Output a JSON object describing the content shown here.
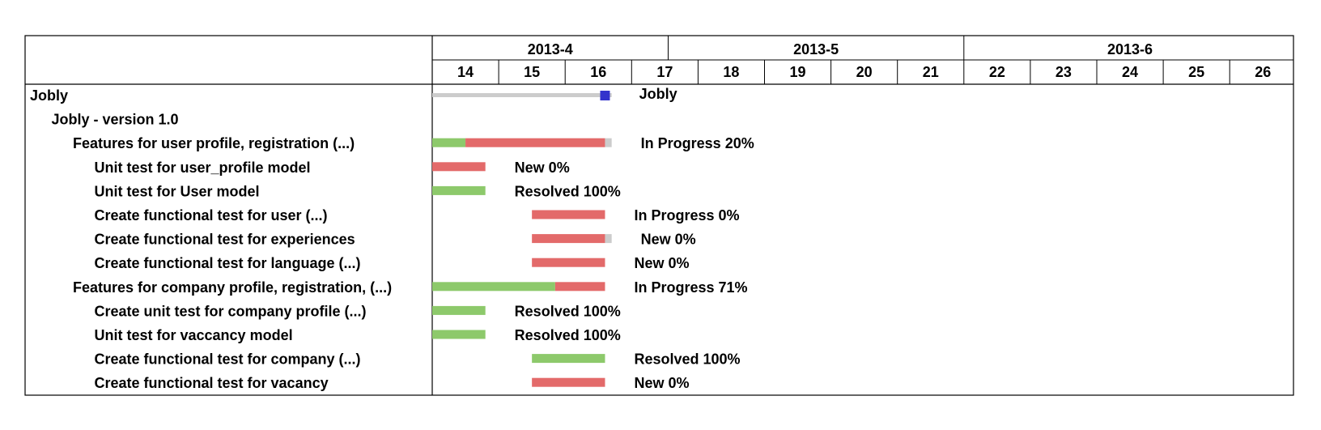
{
  "chart_data": {
    "type": "gantt",
    "months": [
      "2013-4",
      "2013-5",
      "2013-6"
    ],
    "weeks": [
      "14",
      "15",
      "16",
      "17",
      "18",
      "19",
      "20",
      "21",
      "22",
      "23",
      "24",
      "25",
      "26"
    ],
    "colors": {
      "done": "#8dc96b",
      "remaining": "#e36a6a",
      "overrun": "#cccccc",
      "milestone": "#3333cc",
      "border": "#000000"
    },
    "tasks": [
      {
        "name": "Jobly",
        "level": 0,
        "kind": "summary",
        "start": 14.0,
        "end": 16.7,
        "milestone": 16.6,
        "label": "Jobly"
      },
      {
        "name": "Jobly - version 1.0",
        "level": 1,
        "kind": "group"
      },
      {
        "name": "Features for user profile, registration  (...)",
        "level": 2,
        "kind": "bar",
        "start": 14.0,
        "done": 14.5,
        "end": 16.6,
        "overrun": 16.7,
        "label": "In Progress 20%"
      },
      {
        "name": "Unit test for user_profile model",
        "level": 3,
        "kind": "bar",
        "start": 14.0,
        "done": 14.0,
        "end": 14.8,
        "label": "New 0%"
      },
      {
        "name": "Unit test for User model",
        "level": 3,
        "kind": "bar",
        "start": 14.0,
        "done": 14.8,
        "end": 14.8,
        "label": "Resolved 100%"
      },
      {
        "name": "Create functional test for user  (...)",
        "level": 3,
        "kind": "bar",
        "start": 15.5,
        "done": 15.5,
        "end": 16.6,
        "label": "In Progress 0%"
      },
      {
        "name": "Create functional test for experiences",
        "level": 3,
        "kind": "bar",
        "start": 15.5,
        "done": 15.5,
        "end": 16.6,
        "overrun": 16.7,
        "label": "New 0%"
      },
      {
        "name": "Create functional test for language  (...)",
        "level": 3,
        "kind": "bar",
        "start": 15.5,
        "done": 15.5,
        "end": 16.6,
        "label": "New 0%"
      },
      {
        "name": "Features for company profile, registration,  (...)",
        "level": 2,
        "kind": "bar",
        "start": 14.0,
        "done": 15.85,
        "end": 16.6,
        "label": "In Progress 71%"
      },
      {
        "name": "Create unit test for company profile  (...)",
        "level": 3,
        "kind": "bar",
        "start": 14.0,
        "done": 14.8,
        "end": 14.8,
        "label": "Resolved 100%"
      },
      {
        "name": "Unit test for vaccancy model",
        "level": 3,
        "kind": "bar",
        "start": 14.0,
        "done": 14.8,
        "end": 14.8,
        "label": "Resolved 100%"
      },
      {
        "name": "Create functional test for company  (...)",
        "level": 3,
        "kind": "bar",
        "start": 15.5,
        "done": 16.6,
        "end": 16.6,
        "label": "Resolved 100%"
      },
      {
        "name": "Create functional test for vacancy",
        "level": 3,
        "kind": "bar",
        "start": 15.5,
        "done": 15.5,
        "end": 16.6,
        "label": "New 0%"
      }
    ]
  }
}
